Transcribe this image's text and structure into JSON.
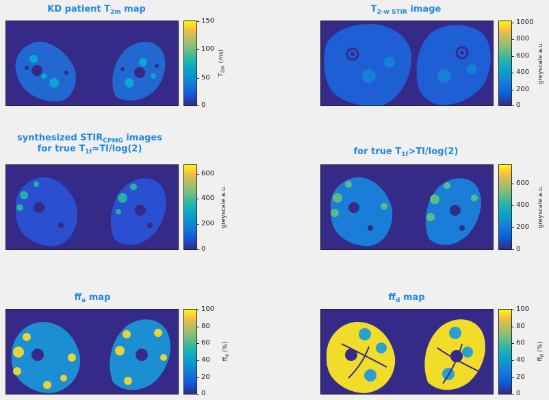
{
  "panels": {
    "p1": {
      "title_pre": "KD patient T",
      "title_sub": "2m",
      "title_post": " map",
      "colorbar": {
        "ticks": [
          "150",
          "100",
          "50",
          "0"
        ],
        "label_pre": "T",
        "label_sub": "2m",
        "label_post": " (ms)"
      }
    },
    "p2": {
      "title_pre": "T",
      "title_sub": "2-w STIR",
      "title_post": " image",
      "colorbar": {
        "ticks": [
          "1000",
          "800",
          "600",
          "400",
          "200",
          "0"
        ],
        "label": "greyscale a.u."
      }
    },
    "p3": {
      "title_line1_pre": "synthesized STIR",
      "title_line1_sub": "CPMG",
      "title_line1_post": " images",
      "title_line2_pre": "for true T",
      "title_line2_sub": "1f",
      "title_line2_post": "≈TI/log(2)",
      "colorbar": {
        "ticks": [
          "600",
          "400",
          "200",
          "0"
        ],
        "label": "greyscale a.u."
      }
    },
    "p4": {
      "title_pre": "for true T",
      "title_sub": "1f",
      "title_post": ">TI/log(2)",
      "colorbar": {
        "ticks": [
          "600",
          "400",
          "200",
          "0"
        ],
        "label": "greyscale a.u."
      }
    },
    "p5": {
      "title_pre": "ff",
      "title_sub": "a",
      "title_post": " map",
      "colorbar": {
        "ticks": [
          "100",
          "80",
          "60",
          "40",
          "20",
          "0"
        ],
        "label_pre": "ff",
        "label_sub": "a",
        "label_post": " (%)"
      }
    },
    "p6": {
      "title_pre": "ff",
      "title_sub": "d",
      "title_post": " map",
      "colorbar": {
        "ticks": [
          "100",
          "80",
          "60",
          "40",
          "20",
          "0"
        ],
        "label_pre": "ff",
        "label_sub": "d",
        "label_post": " (%)"
      }
    }
  },
  "colors": {
    "title": "#1e88e5",
    "background": "#352a87",
    "parula_low": "#352a87",
    "parula_mid": "#06a4ca",
    "parula_high": "#f9fb0e"
  }
}
